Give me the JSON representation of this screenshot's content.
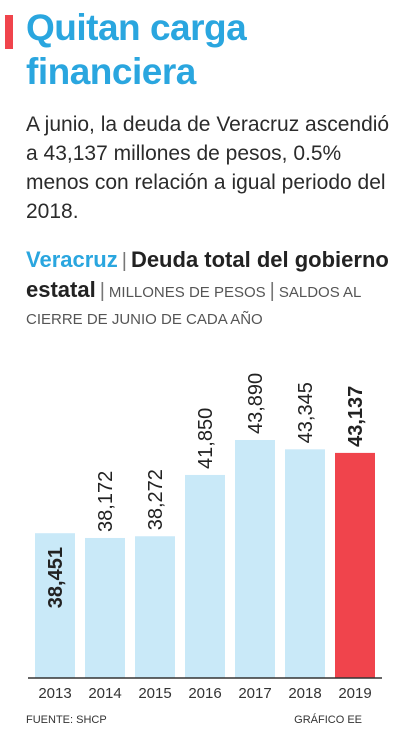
{
  "header": {
    "title": "Quitan carga financiera",
    "lede": "A junio, la deuda de Veracruz ascendió a 43,137 millones de pesos, 0.5% menos con relación a igual periodo del 2018."
  },
  "chart_header": {
    "region": "Veracruz",
    "title": "Deuda total del gobierno estatal",
    "units": "MILLONES DE PESOS",
    "note": "SALDOS AL CIERRE DE JUNIO DE CADA AÑO"
  },
  "chart_data": {
    "type": "bar",
    "categories": [
      "2013",
      "2014",
      "2015",
      "2016",
      "2017",
      "2018",
      "2019"
    ],
    "values": [
      38451,
      38172,
      38272,
      41850,
      43890,
      43345,
      43137
    ],
    "value_labels": [
      "38,451",
      "38,172",
      "38,272",
      "41,850",
      "43,890",
      "43,345",
      "43,137"
    ],
    "colors": {
      "bar": "#c9e9f8",
      "highlight": "#f0444c",
      "highlight_index": 6,
      "accent": "#2aa6df",
      "axis": "#333333"
    }
  },
  "footer": {
    "source": "FUENTE: SHCP",
    "credit": "GRÁFICO EE"
  }
}
